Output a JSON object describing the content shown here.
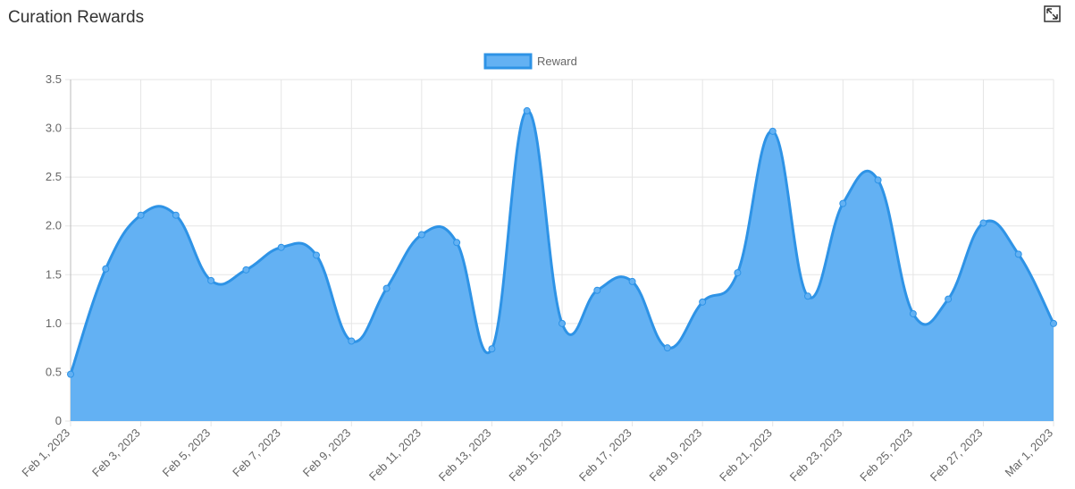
{
  "chart_data": {
    "type": "area",
    "title": "Curation Rewards",
    "categories": [
      "Feb 1, 2023",
      null,
      "Feb 3, 2023",
      null,
      "Feb 5, 2023",
      null,
      "Feb 7, 2023",
      null,
      "Feb 9, 2023",
      null,
      "Feb 11, 2023",
      null,
      "Feb 13, 2023",
      null,
      "Feb 15, 2023",
      null,
      "Feb 17, 2023",
      null,
      "Feb 19, 2023",
      null,
      "Feb 21, 2023",
      null,
      "Feb 23, 2023",
      null,
      "Feb 25, 2023",
      null,
      "Feb 27, 2023",
      null,
      "Mar 1, 2023"
    ],
    "series": [
      {
        "name": "Reward",
        "color": "#2e93e6",
        "fill": "#63b1f3",
        "values": [
          0.48,
          1.56,
          2.11,
          2.11,
          1.44,
          1.55,
          1.78,
          1.7,
          0.82,
          1.36,
          1.91,
          1.83,
          0.74,
          3.18,
          1.0,
          1.34,
          1.43,
          0.75,
          1.22,
          1.52,
          2.97,
          1.28,
          2.23,
          2.47,
          1.1,
          1.25,
          2.03,
          1.71,
          1.0
        ]
      }
    ],
    "ylim": [
      0,
      3.5
    ],
    "yticks": [
      0,
      0.5,
      {
        "value": 1,
        "label": "1.0"
      },
      1.5,
      {
        "value": 2,
        "label": "2.0"
      },
      2.5,
      {
        "value": 3,
        "label": "3.0"
      },
      3.5
    ],
    "grid": true,
    "legend": "top"
  }
}
